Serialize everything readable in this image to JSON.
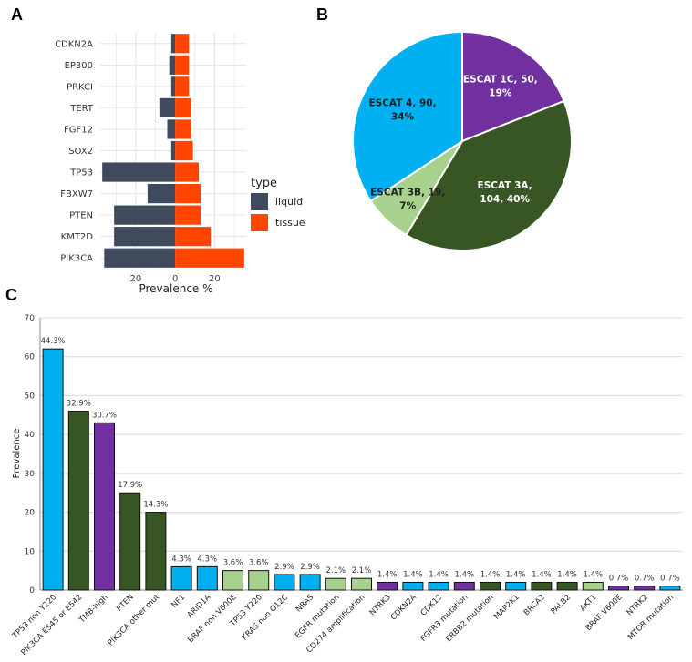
{
  "panels": {
    "a": "A",
    "b": "B",
    "c": "C"
  },
  "colors": {
    "liquid": "#3f4b5c",
    "tissue": "#ff4500",
    "escat_1c": "#7030a0",
    "escat_3a": "#375623",
    "escat_3b": "#a9d18e",
    "escat_4": "#00b0f0",
    "grid": "#e6e6e6",
    "panel_a_bg": "#ffffff"
  },
  "chart_data": [
    {
      "id": "panel-a",
      "type": "bar",
      "orientation": "horizontal",
      "title": "",
      "xlabel": "Prevalence %",
      "ylabel": "",
      "categories": [
        "CDKN2A",
        "EP300",
        "PRKCI",
        "TERT",
        "FGF12",
        "SOX2",
        "TP53",
        "FBXW7",
        "PTEN",
        "KMT2D",
        "PIK3CA"
      ],
      "series": [
        {
          "name": "liquid",
          "values": [
            2,
            3,
            2,
            8,
            4,
            2,
            37,
            14,
            31,
            31,
            36
          ]
        },
        {
          "name": "tissue",
          "values": [
            7,
            7,
            7,
            8,
            8,
            9,
            12,
            13,
            13,
            18,
            35
          ]
        }
      ],
      "xlim": [
        -38,
        36
      ],
      "xticks": [
        {
          "value": -20,
          "label": "20"
        },
        {
          "value": 0,
          "label": "0"
        },
        {
          "value": 20,
          "label": "20"
        }
      ],
      "legend": {
        "title": "type",
        "position": "right",
        "entries": [
          "liquid",
          "tissue"
        ]
      },
      "grid": true
    },
    {
      "id": "panel-b",
      "type": "pie",
      "title": "",
      "slices": [
        {
          "name": "ESCAT 1C",
          "value": 50,
          "percent": "19%",
          "line1": "ESCAT 1C, 50,",
          "line2": "19%",
          "color_key": "escat_1c",
          "text_color": "#ffffff"
        },
        {
          "name": "ESCAT 3A",
          "value": 104,
          "percent": "40%",
          "line1": "ESCAT 3A,",
          "line2": "104, 40%",
          "color_key": "escat_3a",
          "text_color": "#ffffff"
        },
        {
          "name": "ESCAT 3B",
          "value": 19,
          "percent": "7%",
          "line1": "ESCAT 3B, 19,",
          "line2": "7%",
          "color_key": "escat_3b",
          "text_color": "#222222"
        },
        {
          "name": "ESCAT 4",
          "value": 90,
          "percent": "34%",
          "line1": "ESCAT 4, 90,",
          "line2": "34%",
          "color_key": "escat_4",
          "text_color": "#222222"
        }
      ]
    },
    {
      "id": "panel-c",
      "type": "bar",
      "title": "",
      "xlabel": "",
      "ylabel": "Prevalence",
      "ylim": [
        0,
        70
      ],
      "yticks": [
        0,
        10,
        20,
        30,
        40,
        50,
        60,
        70
      ],
      "grid": true,
      "categories": [
        "TP53 non Y220",
        "PIK3CA E545 or E542",
        "TMB-high",
        "PTEN",
        "PIK3CA other mut",
        "NF1",
        "ARID1A",
        "BRAF non V600E",
        "TP53 Y220",
        "KRAS non G12C",
        "NRAS",
        "EGFR mutation",
        "CD274 amplification",
        "NTRK3",
        "CDKN2A",
        "CDK12",
        "FGFR3 mutation",
        "ERBB2 mutation",
        "MAP2K1",
        "BRCA2",
        "PALB2",
        "AKT1",
        "BRAF V600E",
        "NTRK2",
        "MTOR mutation"
      ],
      "values": [
        62,
        46,
        43,
        25,
        20,
        6,
        6,
        5,
        5,
        4,
        4,
        3,
        3,
        2,
        2,
        2,
        2,
        2,
        2,
        2,
        2,
        2,
        1,
        1,
        1
      ],
      "percent_labels": [
        "44.3%",
        "32.9%",
        "30.7%",
        "17.9%",
        "14.3%",
        "4.3%",
        "4.3%",
        "3.6%",
        "3.6%",
        "2.9%",
        "2.9%",
        "2.1%",
        "2.1%",
        "1.4%",
        "1.4%",
        "1.4%",
        "1.4%",
        "1.4%",
        "1.4%",
        "1.4%",
        "1.4%",
        "1.4%",
        "0.7%",
        "0.7%",
        "0.7%"
      ],
      "color_keys": [
        "escat_4",
        "escat_3a",
        "escat_1c",
        "escat_3a",
        "escat_3a",
        "escat_4",
        "escat_4",
        "escat_3b",
        "escat_3b",
        "escat_4",
        "escat_4",
        "escat_3b",
        "escat_3b",
        "escat_1c",
        "escat_4",
        "escat_4",
        "escat_1c",
        "escat_3a",
        "escat_4",
        "escat_3a",
        "escat_3a",
        "escat_3b",
        "escat_1c",
        "escat_1c",
        "escat_4"
      ]
    }
  ]
}
